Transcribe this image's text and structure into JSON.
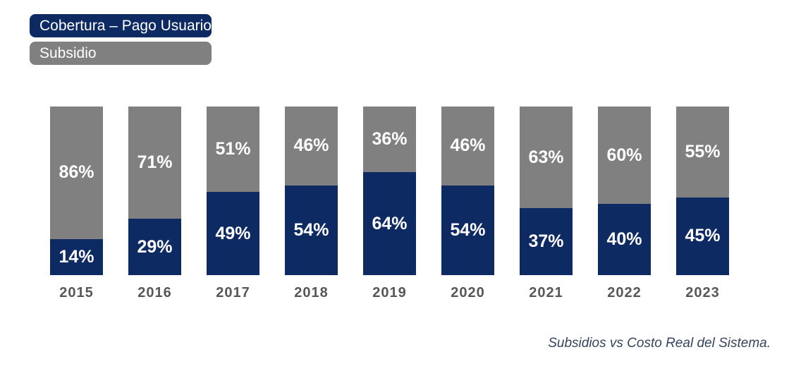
{
  "legend": {
    "items": [
      {
        "label": "Cobertura – Pago Usuario",
        "color": "#0e2a62"
      },
      {
        "label": "Subsidio",
        "color": "#808080"
      }
    ]
  },
  "chart_data": {
    "type": "bar",
    "stacked": true,
    "unit": "%",
    "title": "",
    "xlabel": "",
    "ylabel": "",
    "ylim": [
      0,
      100
    ],
    "grid": false,
    "legend_position": "top-left",
    "value_label_format": "{v}%",
    "categories": [
      "2015",
      "2016",
      "2017",
      "2018",
      "2019",
      "2020",
      "2021",
      "2022",
      "2023"
    ],
    "series": [
      {
        "name": "Cobertura – Pago Usuario",
        "color": "#0e2a62",
        "values": [
          14,
          29,
          49,
          54,
          64,
          54,
          37,
          40,
          45
        ]
      },
      {
        "name": "Subsidio",
        "color": "#808080",
        "values": [
          86,
          71,
          51,
          46,
          36,
          46,
          63,
          60,
          55
        ]
      }
    ]
  },
  "caption": "Subsidios vs Costo Real del Sistema."
}
